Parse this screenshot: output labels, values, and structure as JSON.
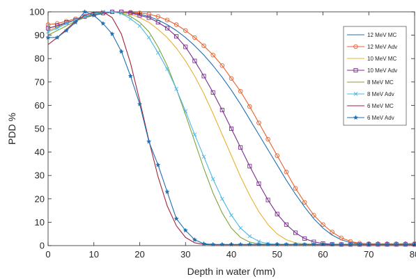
{
  "chart_data": {
    "type": "line",
    "title": "",
    "xlabel": "Depth in water (mm)",
    "ylabel": "PDD %",
    "xlim": [
      0,
      80
    ],
    "ylim": [
      0,
      100
    ],
    "xticks": [
      0,
      10,
      20,
      30,
      40,
      50,
      60,
      70,
      80
    ],
    "yticks": [
      0,
      10,
      20,
      30,
      40,
      50,
      60,
      70,
      80,
      90,
      100
    ],
    "xtick_labels": [
      "0",
      "10",
      "20",
      "30",
      "40",
      "50",
      "60",
      "70",
      "80"
    ],
    "ytick_labels": [
      "0",
      "10",
      "20",
      "30",
      "40",
      "50",
      "60",
      "70",
      "80",
      "90",
      "100"
    ],
    "grid": false,
    "legend_position": "top-right",
    "series": [
      {
        "name": "12 MeV MC",
        "color": "#1f6fb2",
        "marker": "none",
        "x": [
          0,
          2,
          4,
          6,
          8,
          10,
          12,
          14,
          16,
          18,
          20,
          22,
          24,
          26,
          28,
          30,
          32,
          34,
          36,
          38,
          40,
          42,
          44,
          46,
          48,
          50,
          52,
          54,
          56,
          58,
          60,
          62,
          64,
          66,
          68,
          70,
          72,
          74,
          76,
          78,
          80
        ],
        "y": [
          93,
          94,
          95,
          96.5,
          97.5,
          98.5,
          99.3,
          99.8,
          100,
          99.7,
          99,
          98,
          96.5,
          94.5,
          92,
          89,
          85.5,
          81.5,
          77,
          72,
          66.5,
          60.5,
          54,
          47.5,
          41,
          34.5,
          28,
          22,
          16.5,
          11.5,
          7.5,
          4.5,
          2.5,
          1.3,
          0.8,
          0.6,
          0.6,
          0.6,
          0.7,
          0.7,
          0.7
        ]
      },
      {
        "name": "12 MeV Adv",
        "color": "#e8602c",
        "marker": "circle",
        "x": [
          0,
          2,
          4,
          6,
          8,
          10,
          12,
          14,
          16,
          18,
          20,
          22,
          24,
          26,
          28,
          30,
          32,
          34,
          36,
          38,
          40,
          42,
          44,
          46,
          48,
          50,
          52,
          54,
          56,
          58,
          60,
          62,
          64,
          66,
          68,
          70,
          72,
          74,
          76,
          78,
          80
        ],
        "y": [
          94.5,
          95,
          96,
          97,
          98,
          99,
          99.5,
          100,
          100,
          99.8,
          99.5,
          99,
          98,
          96.5,
          94.5,
          92,
          89,
          85.5,
          81.5,
          77,
          71.5,
          66,
          59.5,
          52.5,
          45.5,
          38.5,
          31.5,
          24.5,
          18.5,
          13,
          9,
          5.8,
          3.3,
          1.8,
          1,
          0.8,
          0.8,
          0.8,
          0.8,
          0.8,
          0.9
        ]
      },
      {
        "name": "10 MeV MC",
        "color": "#e8b030",
        "marker": "none",
        "x": [
          0,
          2,
          4,
          6,
          8,
          10,
          12,
          14,
          16,
          18,
          20,
          22,
          24,
          26,
          28,
          30,
          32,
          34,
          36,
          38,
          40,
          42,
          44,
          46,
          48,
          50,
          52,
          54,
          56,
          58,
          60,
          62,
          64,
          66,
          68,
          70,
          72,
          74,
          76,
          78,
          80
        ],
        "y": [
          92,
          93.5,
          95,
          96.5,
          98,
          99,
          99.6,
          100,
          99.7,
          99,
          97.5,
          95.5,
          92.5,
          89,
          84.5,
          79,
          72.5,
          65,
          56.5,
          47.5,
          38.5,
          29.5,
          21.5,
          14.5,
          9,
          5,
          2.5,
          1.2,
          0.7,
          0.6,
          0.6,
          0.6,
          0.6,
          0.6,
          0.6,
          0.6,
          0.6,
          0.6,
          0.6,
          0.6,
          0.6
        ]
      },
      {
        "name": "10 MeV Adv",
        "color": "#7b2d8e",
        "marker": "square",
        "x": [
          0,
          2,
          4,
          6,
          8,
          10,
          12,
          14,
          16,
          18,
          20,
          22,
          24,
          26,
          28,
          30,
          32,
          34,
          36,
          38,
          40,
          42,
          44,
          46,
          48,
          50,
          52,
          54,
          56,
          58,
          60,
          62,
          64,
          66,
          68,
          70,
          72,
          74,
          76,
          78,
          80
        ],
        "y": [
          93,
          94,
          95.5,
          96.5,
          98,
          99,
          99.5,
          100,
          100,
          99.5,
          98.5,
          97.5,
          95.5,
          93,
          89.5,
          85,
          79,
          72.5,
          65.5,
          58,
          50,
          42,
          34,
          26.5,
          19.5,
          13.5,
          9,
          5.5,
          3,
          1.6,
          0.9,
          0.6,
          0.5,
          0.5,
          0.5,
          0.5,
          0.5,
          0.5,
          0.5,
          0.5,
          0.5
        ]
      },
      {
        "name": "8 MeV MC",
        "color": "#7ea33a",
        "marker": "none",
        "x": [
          0,
          2,
          4,
          6,
          8,
          10,
          12,
          14,
          16,
          18,
          20,
          22,
          24,
          26,
          28,
          30,
          32,
          34,
          36,
          38,
          40,
          42,
          44,
          46,
          48,
          50,
          52,
          54,
          56,
          58,
          60,
          62,
          64,
          66,
          68,
          70,
          72,
          74,
          76,
          78,
          80
        ],
        "y": [
          90,
          92,
          94,
          96,
          97.5,
          99,
          99.8,
          100,
          99.5,
          98,
          95.5,
          91.5,
          85,
          77,
          67,
          56,
          44.5,
          33,
          22.5,
          14,
          7.5,
          3.5,
          1.5,
          0.7,
          0.5,
          0.5,
          0.5,
          0.5,
          0.5,
          0.5,
          0.5,
          0.5,
          0.5,
          0.5,
          0.5,
          0.5,
          0.5,
          0.5,
          0.5,
          0.5,
          0.5
        ]
      },
      {
        "name": "8 MeV Adv",
        "color": "#4cb8e0",
        "marker": "x",
        "x": [
          0,
          2,
          4,
          6,
          8,
          10,
          12,
          14,
          16,
          18,
          20,
          22,
          24,
          26,
          28,
          30,
          32,
          34,
          36,
          38,
          40,
          42,
          44,
          46,
          48,
          50,
          52,
          54,
          56,
          58,
          60,
          62,
          64,
          66,
          68,
          70,
          72,
          74,
          76,
          78,
          80
        ],
        "y": [
          91.5,
          93,
          95,
          96.5,
          98,
          99.3,
          100,
          100,
          99.3,
          97,
          94,
          89,
          82.5,
          75.5,
          67,
          57.5,
          47.5,
          38,
          28.5,
          20,
          13,
          7.5,
          4,
          1.8,
          0.8,
          0.5,
          0.5,
          0.5,
          0.5,
          0.5,
          0.5,
          0.5,
          0.5,
          0.5,
          0.5,
          0.5,
          0.5,
          0.5,
          0.5,
          0.5,
          0.5
        ]
      },
      {
        "name": "6 MeV MC",
        "color": "#a3223a",
        "marker": "none",
        "x": [
          0,
          2,
          4,
          6,
          8,
          10,
          12,
          14,
          16,
          18,
          20,
          22,
          24,
          26,
          28,
          30,
          32,
          34,
          36,
          38,
          40,
          42,
          44,
          46,
          48,
          50,
          52,
          54,
          56,
          58,
          60,
          62,
          64,
          66,
          68,
          70,
          72,
          74,
          76,
          78,
          80
        ],
        "y": [
          86,
          89,
          92.5,
          96,
          98.5,
          99.8,
          100,
          97.5,
          90.5,
          78,
          62,
          45,
          29.5,
          17,
          8.5,
          3.5,
          1.2,
          0.5,
          0.4,
          0.4,
          0.4,
          0.4,
          0.4,
          0.4,
          0.4,
          0.4,
          0.4,
          0.4,
          0.4,
          0.4,
          0.4,
          0.4,
          0.4,
          0.4,
          0.4,
          0.4,
          0.4,
          0.4,
          0.4,
          0.4,
          0.4
        ]
      },
      {
        "name": "6 MeV Adv",
        "color": "#1f6fb2",
        "marker": "star",
        "x": [
          0,
          2,
          4,
          6,
          8,
          10,
          12,
          14,
          16,
          18,
          20,
          22,
          24,
          26,
          28,
          30,
          32,
          34,
          36,
          38,
          40,
          42,
          44,
          46,
          48,
          50,
          52,
          54,
          56,
          58,
          60,
          62,
          64,
          66,
          68,
          70,
          72,
          74,
          76,
          78,
          80
        ],
        "y": [
          89,
          89,
          92,
          95.5,
          100,
          98.5,
          95,
          90.5,
          83,
          72.5,
          60.5,
          44.5,
          34.5,
          23,
          11.5,
          6.5,
          2.5,
          0.8,
          0.5,
          0.5,
          0.5,
          0.5,
          0.5,
          0.5,
          0.5,
          0.5,
          0.5,
          0.5,
          0.5,
          0.5,
          0.5,
          0.5,
          0.5,
          0.5,
          0.5,
          0.5,
          0.5,
          0.5,
          0.5,
          0.5,
          0.5
        ]
      }
    ]
  }
}
